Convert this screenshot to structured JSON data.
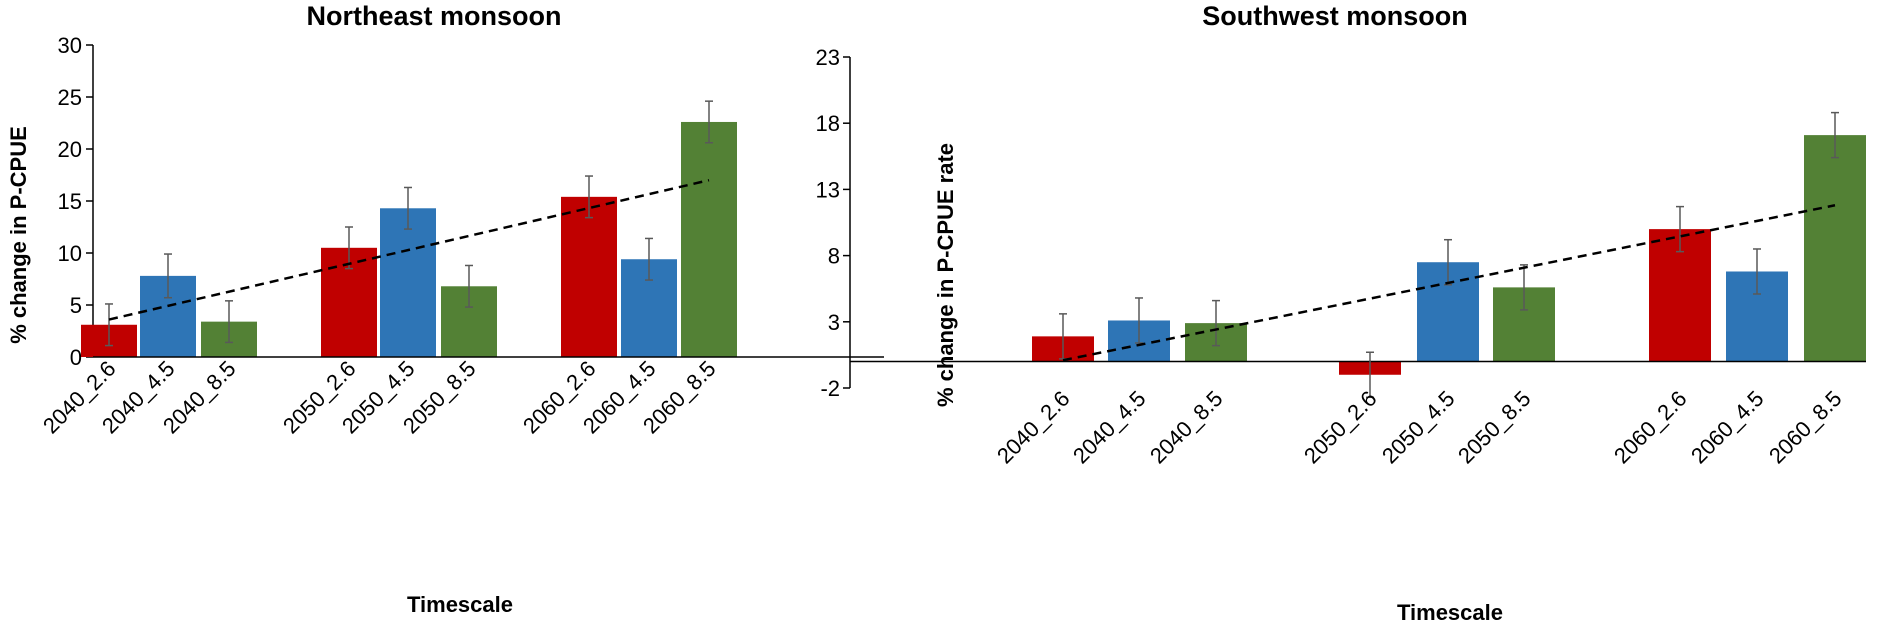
{
  "colors": {
    "rcp26": "#c00000",
    "rcp45": "#2e75b6",
    "rcp85": "#538135",
    "axis": "#000000",
    "error": "#595959"
  },
  "chart_data": [
    {
      "type": "bar",
      "title": "Northeast monsoon",
      "xlabel": "Timescale",
      "ylabel": "% change in P-CPUE",
      "ylim": [
        0,
        30
      ],
      "yticks": [
        0,
        5,
        10,
        15,
        20,
        25,
        30
      ],
      "categories": [
        "2040_2.6",
        "2040_4.5",
        "2040_8.5",
        "2050_2.6",
        "2050_4.5",
        "2050_8.5",
        "2060_2.6",
        "2060_4.5",
        "2060_8.5"
      ],
      "values": [
        3.1,
        7.8,
        3.4,
        10.5,
        14.3,
        6.8,
        15.4,
        9.4,
        22.6
      ],
      "errors": [
        2.0,
        2.1,
        2.0,
        2.0,
        2.0,
        2.0,
        2.0,
        2.0,
        2.0
      ],
      "series_index": [
        0,
        1,
        2,
        0,
        1,
        2,
        0,
        1,
        2
      ],
      "trend": {
        "start": 3.6,
        "end": 17.0
      }
    },
    {
      "type": "bar",
      "title": "Southwest monsoon",
      "xlabel": "Timescale",
      "ylabel": "% change in P-CPUE rate",
      "ylim": [
        -2,
        23
      ],
      "yticks": [
        -2,
        3,
        8,
        13,
        18,
        23
      ],
      "categories": [
        "2040_2.6",
        "2040_4.5",
        "2040_8.5",
        "2050_2.6",
        "2050_4.5",
        "2050_8.5",
        "2060_2.6",
        "2060_4.5",
        "2060_8.5"
      ],
      "values": [
        1.9,
        3.1,
        2.9,
        -1.0,
        7.5,
        5.6,
        10.0,
        6.8,
        17.1
      ],
      "errors": [
        1.7,
        1.7,
        1.7,
        1.7,
        1.7,
        1.7,
        1.7,
        1.7,
        1.7
      ],
      "series_index": [
        0,
        1,
        2,
        0,
        1,
        2,
        0,
        1,
        2
      ],
      "trend": {
        "start": 0.1,
        "end": 11.8
      }
    }
  ]
}
